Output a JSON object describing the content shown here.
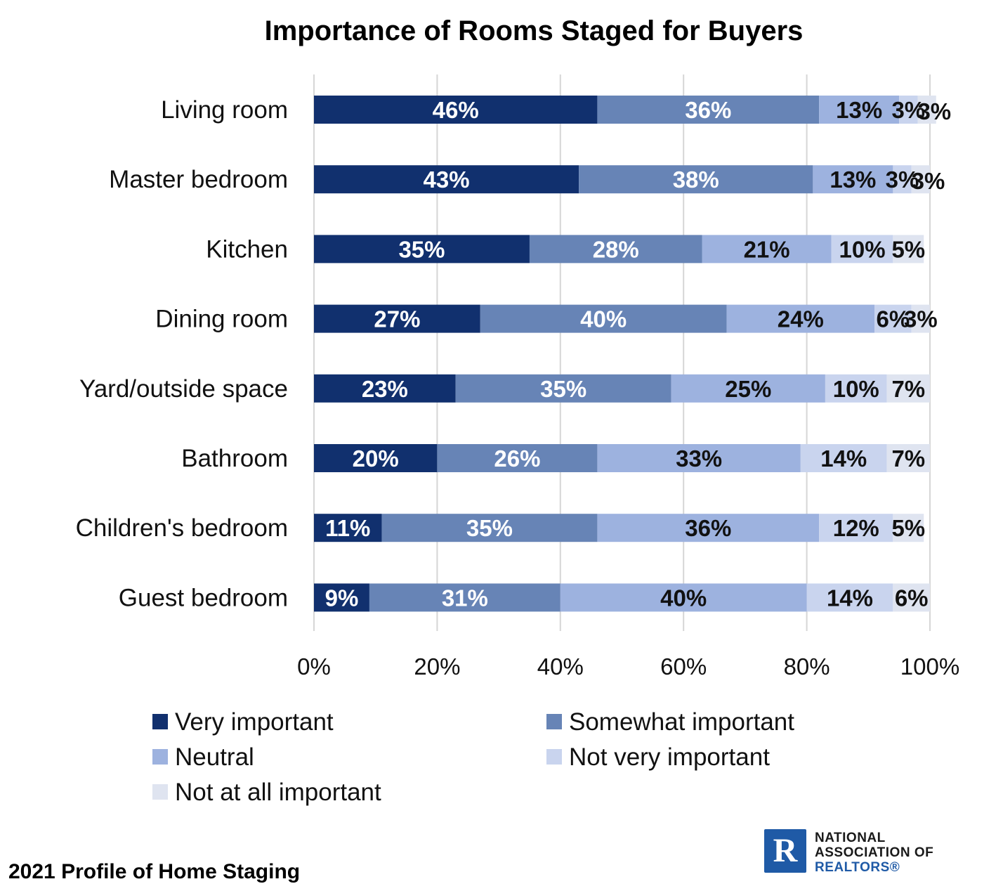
{
  "chart_data": {
    "type": "bar",
    "orientation": "horizontal",
    "stacked": true,
    "title": "Importance of Rooms Staged for Buyers",
    "categories": [
      "Living room",
      "Master bedroom",
      "Kitchen",
      "Dining room",
      "Yard/outside space",
      "Bathroom",
      "Children's bedroom",
      "Guest bedroom"
    ],
    "series": [
      {
        "name": "Very important",
        "color": "#11306e",
        "label_color": "#ffffff",
        "values": [
          46,
          43,
          35,
          27,
          23,
          20,
          11,
          9
        ]
      },
      {
        "name": "Somewhat important",
        "color": "#6784b6",
        "label_color": "#ffffff",
        "values": [
          36,
          38,
          28,
          40,
          35,
          26,
          35,
          31
        ]
      },
      {
        "name": "Neutral",
        "color": "#9db2df",
        "label_color": "#111111",
        "values": [
          13,
          13,
          21,
          24,
          25,
          33,
          36,
          40
        ]
      },
      {
        "name": "Not very important",
        "color": "#c9d4ee",
        "label_color": "#111111",
        "values": [
          3,
          3,
          10,
          6,
          10,
          14,
          12,
          14
        ]
      },
      {
        "name": "Not at all important",
        "color": "#dfe4f0",
        "label_color": "#111111",
        "values": [
          3,
          3,
          5,
          3,
          7,
          7,
          5,
          6
        ]
      }
    ],
    "xlim": [
      0,
      100
    ],
    "xticks": [
      0,
      20,
      40,
      60,
      80,
      100
    ],
    "xtick_labels": [
      "0%",
      "20%",
      "40%",
      "60%",
      "80%",
      "100%"
    ],
    "value_suffix": "%",
    "grid": true,
    "legend_position": "bottom"
  },
  "footer": {
    "source": "2021 Profile of Home Staging"
  },
  "logo": {
    "line1": "NATIONAL",
    "line2": "ASSOCIATION OF",
    "line3": "REALTORS®"
  }
}
